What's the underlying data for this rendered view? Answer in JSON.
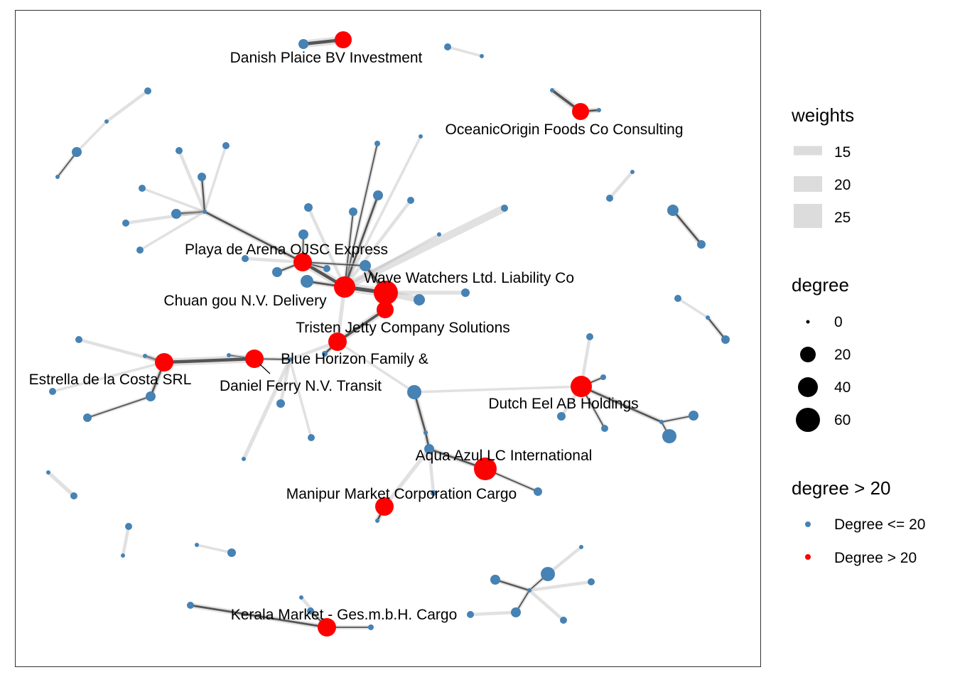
{
  "colors": {
    "edge": "#1a1a1a",
    "edge_light": "#bdbdbd",
    "node_low": "#4682B4",
    "node_high": "#FF0000",
    "legend_key_bg": "#d9d9d9",
    "panel_border": "#333333"
  },
  "labels": [
    "Danish Plaice BV Investment",
    "OceanicOrigin Foods Co Consulting",
    "Playa de Arena OJSC Express",
    "Wave Watchers Ltd. Liability Co",
    "Chuan gou  N.V. Delivery",
    "Tristen Jetty Company Solutions",
    "Blue Horizon Family &",
    "Estrella de la Costa SRL",
    "Daniel Ferry N.V. Transit",
    "Dutch Eel AB Holdings",
    "Aqua Azul LC International",
    "Manipur  Market Corporation Cargo",
    "Kerala  Market - Ges.m.b.H. Cargo"
  ],
  "legend": {
    "weights": {
      "title": "weights",
      "items": [
        "15",
        "20",
        "25"
      ]
    },
    "degree": {
      "title": "degree",
      "items": [
        "0",
        "20",
        "40",
        "60"
      ]
    },
    "degree_flag": {
      "title": "degree > 20",
      "items": [
        "Degree <= 20",
        "Degree > 20"
      ]
    }
  }
}
